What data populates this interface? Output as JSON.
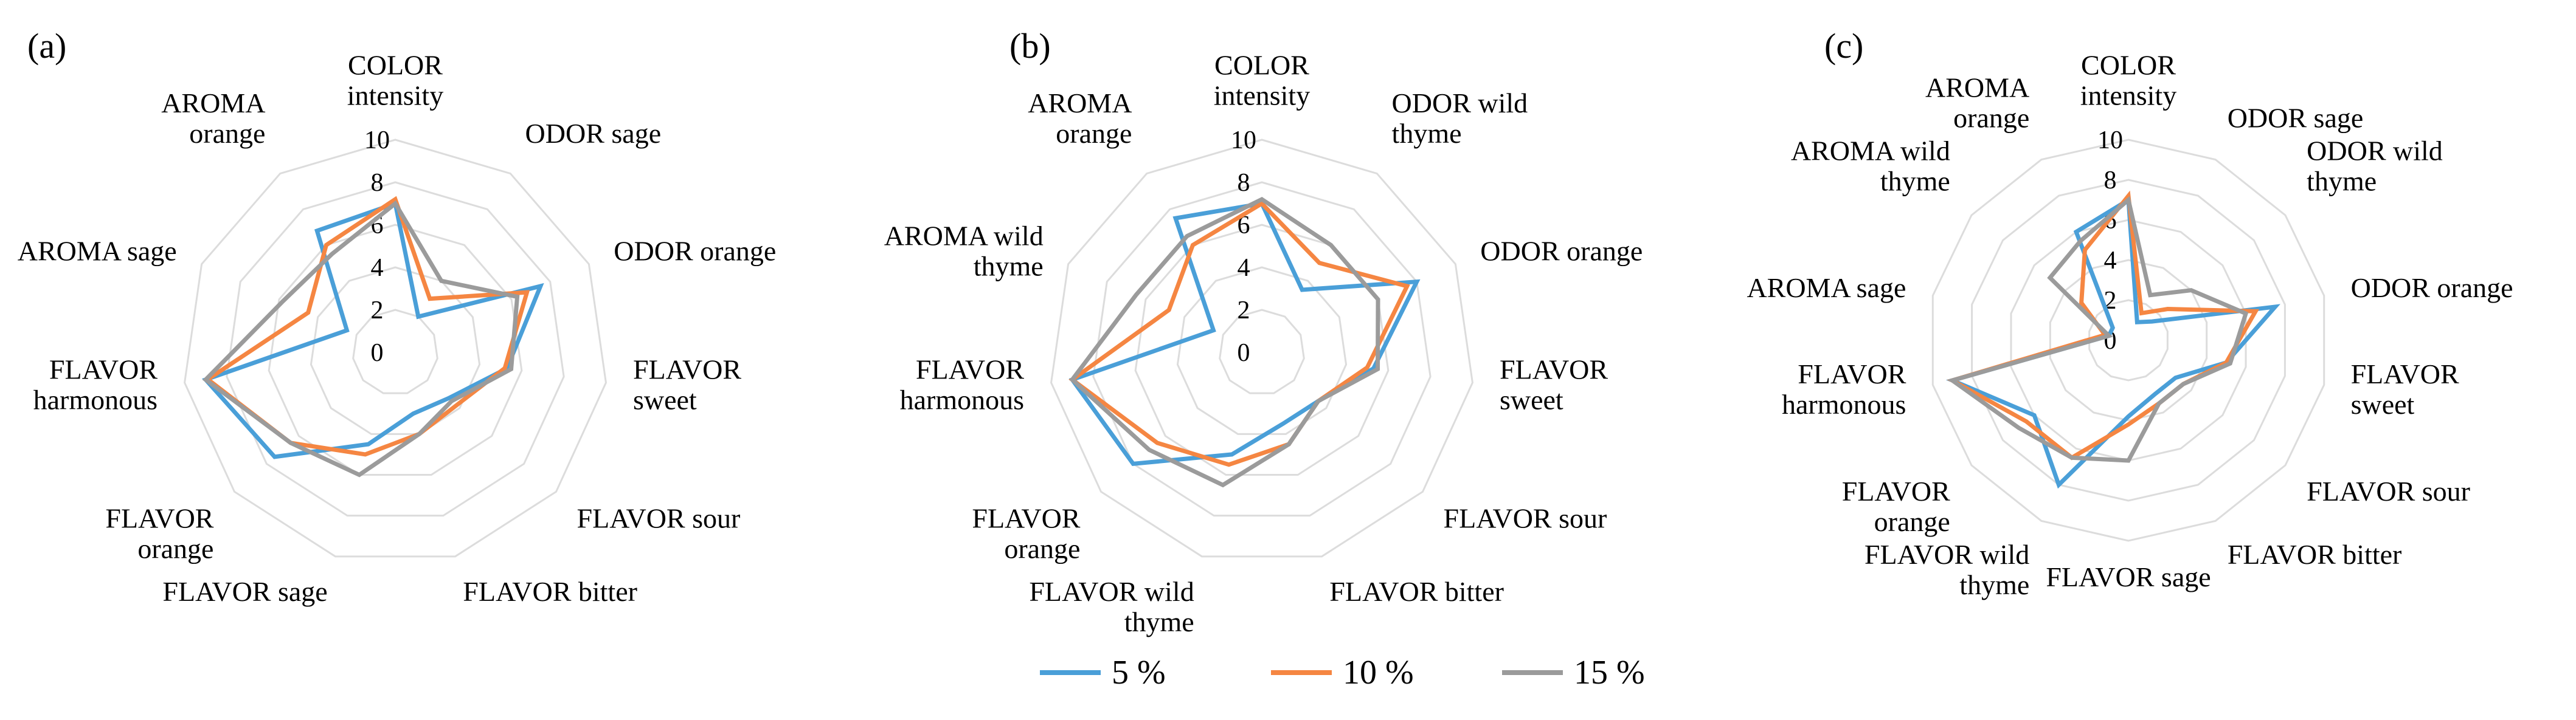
{
  "legend": [
    {
      "label": "5 %",
      "color": "#4a9fd8"
    },
    {
      "label": "10 %",
      "color": "#f58642"
    },
    {
      "label": "15 %",
      "color": "#9b9b9b"
    }
  ],
  "chart_data": [
    {
      "type": "radar",
      "panel": "(a)",
      "axes": [
        [
          "COLOR",
          "intensity"
        ],
        [
          "ODOR sage"
        ],
        [
          "ODOR orange"
        ],
        [
          "FLAVOR",
          "sweet"
        ],
        [
          "FLAVOR sour"
        ],
        [
          "FLAVOR bitter"
        ],
        [
          "FLAVOR sage"
        ],
        [
          "FLAVOR",
          "orange"
        ],
        [
          "FLAVOR",
          "harmonous"
        ],
        [
          "AROMA sage"
        ],
        [
          "AROMA",
          "orange"
        ]
      ],
      "rlim": [
        0,
        10
      ],
      "ticks": [
        "0",
        "2",
        "4",
        "6",
        "8",
        "10"
      ],
      "grid": true,
      "series": [
        {
          "name": "5 %",
          "values": [
            7.0,
            2.0,
            7.5,
            5.3,
            3.3,
            3.0,
            4.5,
            7.5,
            9.0,
            2.5,
            6.8
          ]
        },
        {
          "name": "10 %",
          "values": [
            7.2,
            3.0,
            6.8,
            5.2,
            3.8,
            4.0,
            5.0,
            6.5,
            8.9,
            4.5,
            6.0
          ]
        },
        {
          "name": "15 %",
          "values": [
            7.0,
            4.0,
            6.3,
            5.5,
            3.5,
            4.0,
            6.0,
            6.5,
            9.0,
            5.8,
            5.5
          ]
        }
      ]
    },
    {
      "type": "radar",
      "panel": "(b)",
      "axes": [
        [
          "COLOR",
          "intensity"
        ],
        [
          "ODOR wild",
          "thyme"
        ],
        [
          "ODOR orange"
        ],
        [
          "FLAVOR",
          "sweet"
        ],
        [
          "FLAVOR sour"
        ],
        [
          "FLAVOR bitter"
        ],
        [
          "FLAVOR wild",
          "thyme"
        ],
        [
          "FLAVOR",
          "orange"
        ],
        [
          "FLAVOR",
          "harmonous"
        ],
        [
          "AROMA wild",
          "thyme"
        ],
        [
          "AROMA",
          "orange"
        ]
      ],
      "rlim": [
        0,
        10
      ],
      "ticks": [
        "0",
        "2",
        "4",
        "6",
        "8",
        "10"
      ],
      "grid": true,
      "series": [
        {
          "name": "5 %",
          "values": [
            7.0,
            3.5,
            8.0,
            5.3,
            3.5,
            3.5,
            5.0,
            8.0,
            9.0,
            2.5,
            7.5
          ]
        },
        {
          "name": "10 %",
          "values": [
            7.0,
            5.0,
            7.5,
            5.0,
            3.5,
            4.5,
            5.5,
            6.5,
            9.0,
            4.8,
            6.0
          ]
        },
        {
          "name": "15 %",
          "values": [
            7.2,
            6.0,
            6.0,
            5.5,
            3.5,
            4.5,
            6.5,
            7.0,
            9.0,
            6.5,
            6.5
          ]
        }
      ]
    },
    {
      "type": "radar",
      "panel": "(c)",
      "axes": [
        [
          "COLOR",
          "intensity"
        ],
        [
          "ODOR sage"
        ],
        [
          "ODOR wild",
          "thyme"
        ],
        [
          "ODOR orange"
        ],
        [
          "FLAVOR",
          "sweet"
        ],
        [
          "FLAVOR sour"
        ],
        [
          "FLAVOR bitter"
        ],
        [
          "FLAVOR sage"
        ],
        [
          "FLAVOR wild",
          "thyme"
        ],
        [
          "FLAVOR",
          "orange"
        ],
        [
          "FLAVOR",
          "harmonous"
        ],
        [
          "AROMA sage"
        ],
        [
          "AROMA wild",
          "thyme"
        ],
        [
          "AROMA",
          "orange"
        ]
      ],
      "rlim": [
        0,
        10
      ],
      "ticks": [
        "0",
        "2",
        "4",
        "6",
        "8",
        "10"
      ],
      "grid": true,
      "series": [
        {
          "name": "5 %",
          "values": [
            7.0,
            1.0,
            1.5,
            7.5,
            5.0,
            3.0,
            3.0,
            3.8,
            8.0,
            6.0,
            9.0,
            1.0,
            1.0,
            6.0
          ]
        },
        {
          "name": "10 %",
          "values": [
            7.2,
            1.5,
            2.5,
            6.5,
            5.0,
            3.5,
            3.5,
            4.2,
            6.5,
            6.5,
            9.0,
            1.2,
            3.0,
            5.0
          ]
        },
        {
          "name": "15 %",
          "values": [
            7.0,
            2.5,
            4.0,
            6.0,
            5.2,
            3.5,
            3.5,
            6.0,
            6.5,
            7.0,
            9.0,
            1.0,
            5.0,
            5.5
          ]
        }
      ]
    }
  ]
}
